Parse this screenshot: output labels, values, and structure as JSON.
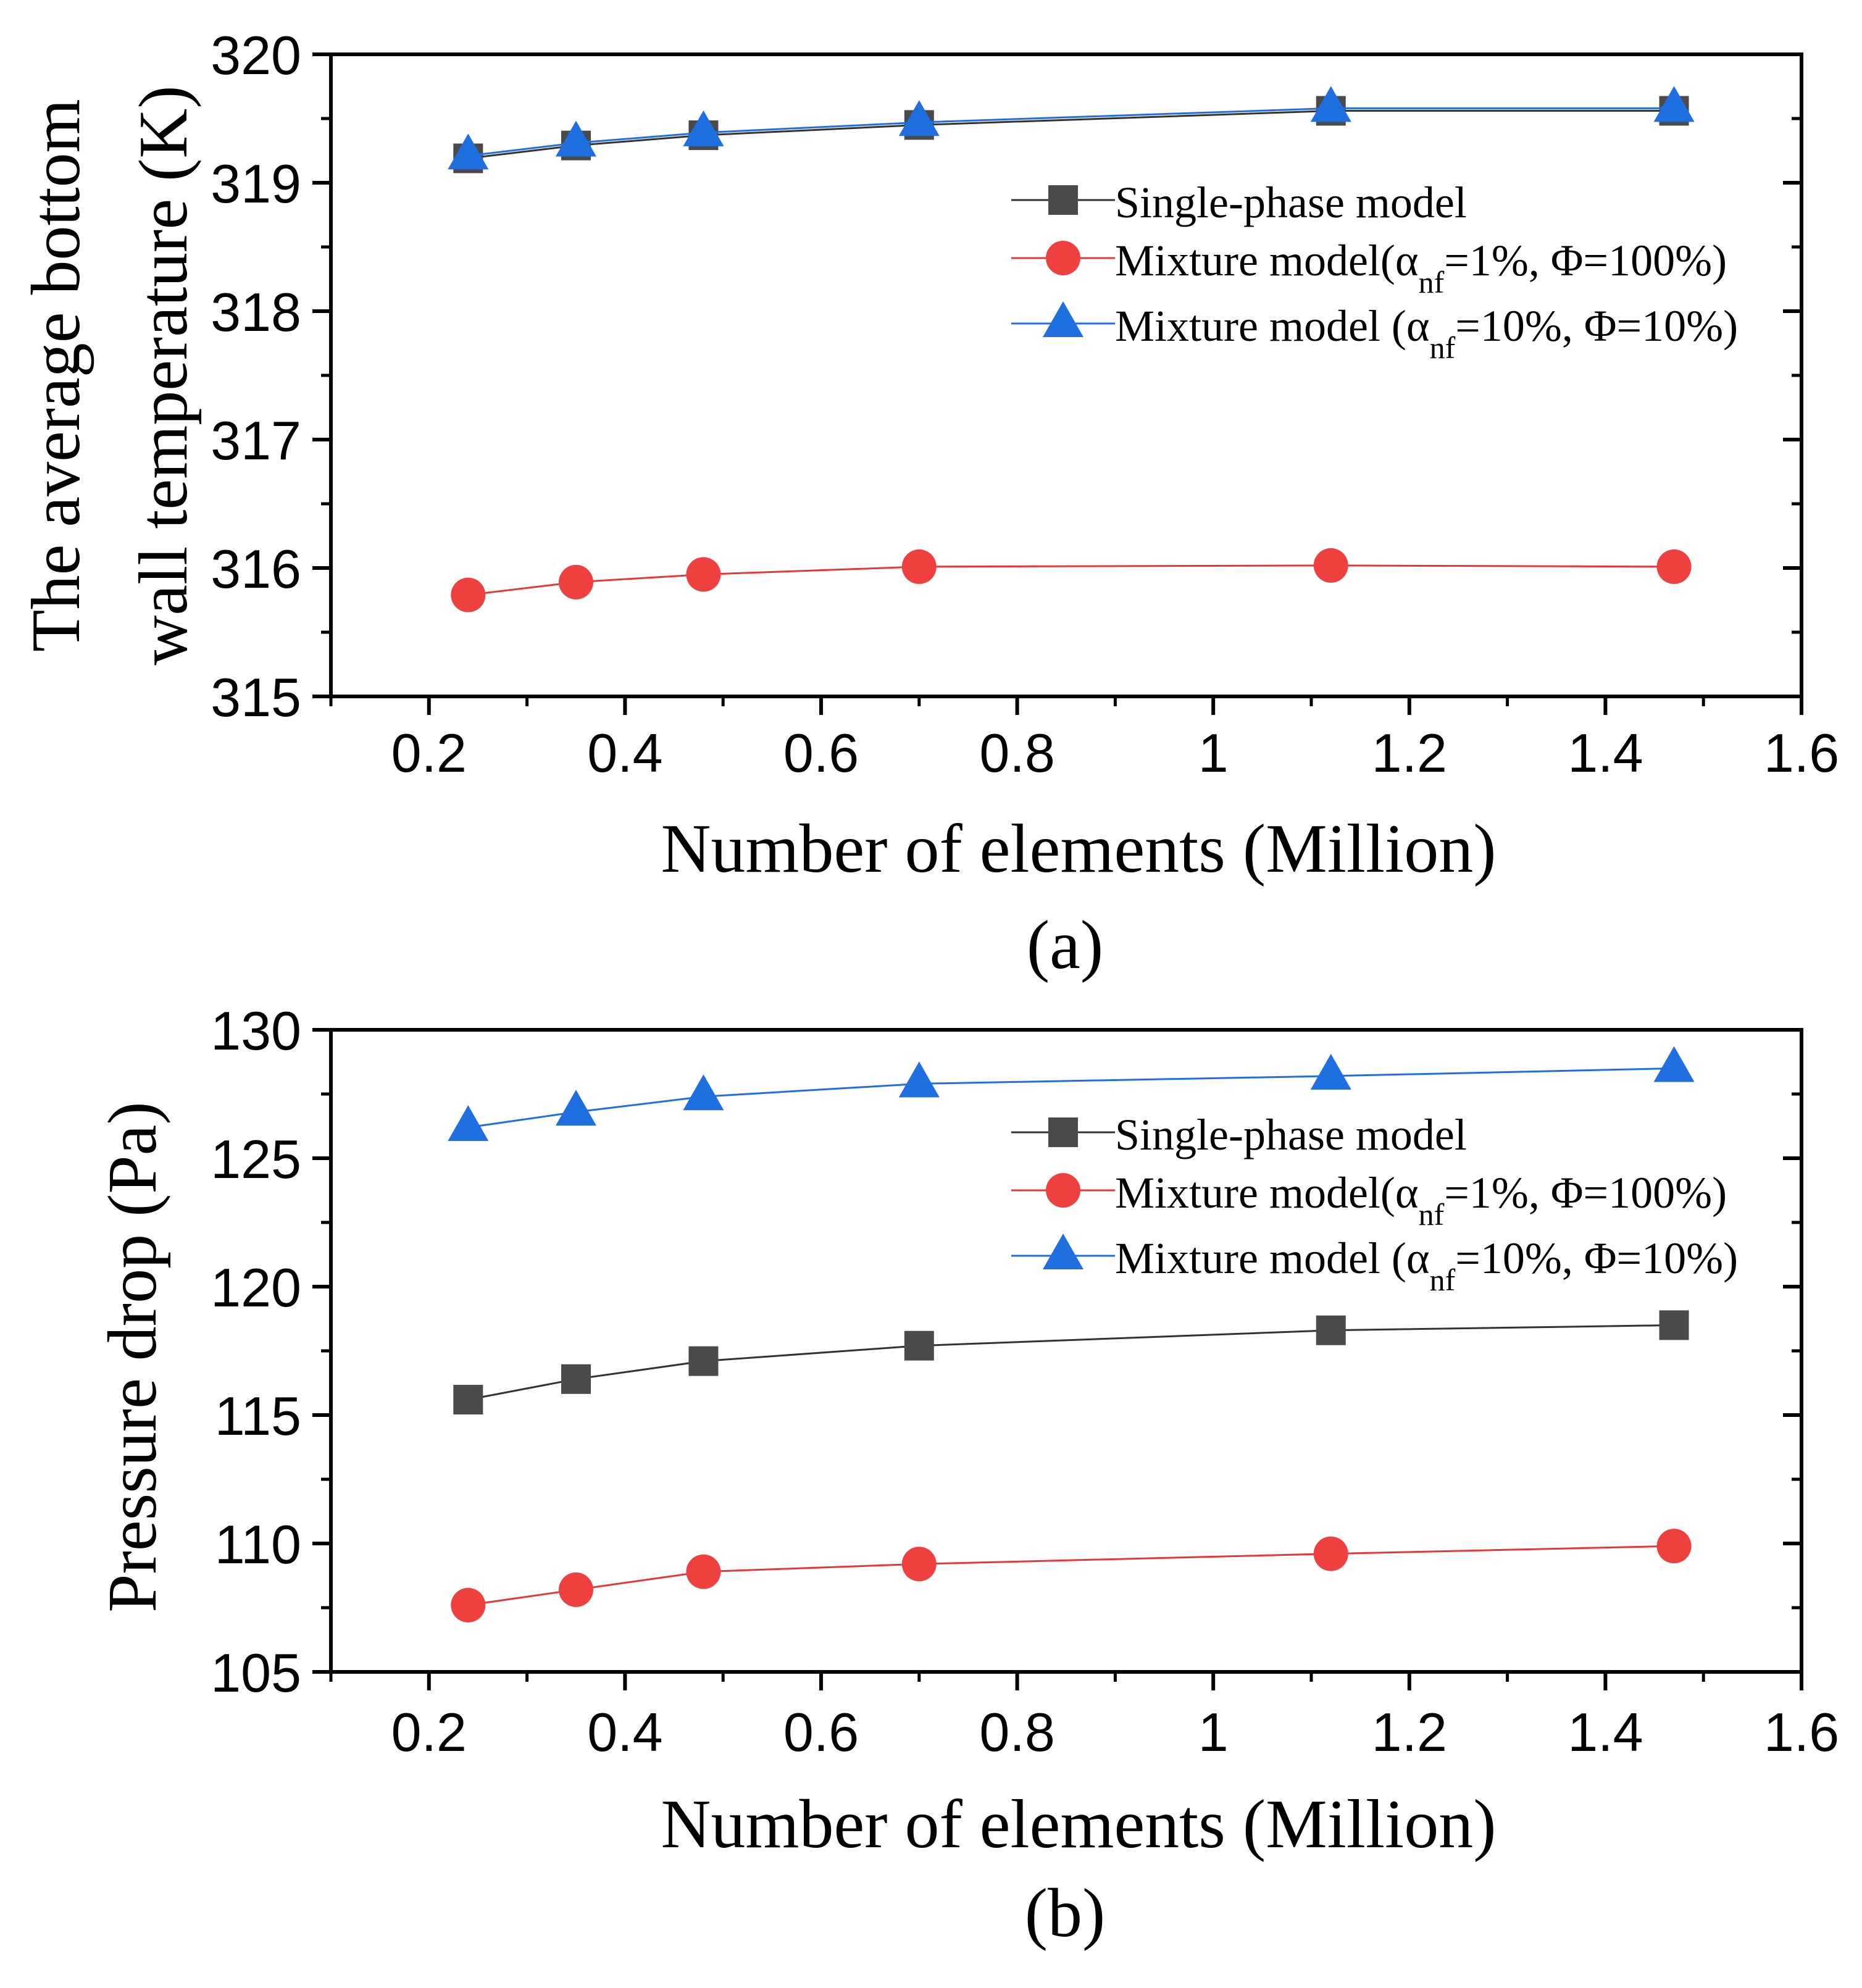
{
  "chart_data": [
    {
      "type": "line",
      "panel_label": "(a)",
      "title": "",
      "xlabel": "Number of elements (Million)",
      "ylabel_lines": [
        "The average bottom",
        "wall temperature (K)"
      ],
      "xlim": [
        0.1,
        1.6
      ],
      "ylim": [
        315,
        320
      ],
      "xticks": [
        0.2,
        0.4,
        0.6,
        0.8,
        1,
        1.2,
        1.4,
        1.6
      ],
      "xtick_labels": [
        "0.2",
        "0.4",
        "0.6",
        "0.8",
        "1",
        "1.2",
        "1.4",
        "1.6"
      ],
      "yticks": [
        315,
        316,
        317,
        318,
        319,
        320
      ],
      "ytick_labels": [
        "315",
        "316",
        "317",
        "318",
        "319",
        "320"
      ],
      "grid": false,
      "legend_position": "top-right",
      "x": [
        0.24,
        0.35,
        0.48,
        0.7,
        1.12,
        1.47
      ],
      "series": [
        {
          "name": "Single-phase model",
          "legend_text": "Single-phase model",
          "marker": "square",
          "color": "#4a4a4a",
          "line_color": "#333333",
          "values": [
            319.19,
            319.29,
            319.37,
            319.45,
            319.56,
            319.56
          ]
        },
        {
          "name": "Mixture model(αnf=1%, Φ=100%)",
          "legend_pre": "Mixture model(α",
          "legend_sub": "nf",
          "legend_post": "=1%, Φ=100%)",
          "marker": "circle",
          "color": "#ef4040",
          "line_color": "#e23a3a",
          "values": [
            315.79,
            315.89,
            315.95,
            316.01,
            316.02,
            316.01
          ]
        },
        {
          "name": "Mixture model (αnf=10%, Φ=10%)",
          "legend_pre": "Mixture model (α",
          "legend_sub": "nf",
          "legend_post": "=10%, Φ=10%)",
          "marker": "triangle",
          "color": "#1f6fe0",
          "line_color": "#1f6fe0",
          "values": [
            319.21,
            319.31,
            319.39,
            319.47,
            319.58,
            319.58
          ]
        }
      ]
    },
    {
      "type": "line",
      "panel_label": "(b)",
      "title": "",
      "xlabel": "Number of elements (Million)",
      "ylabel_lines": [
        "Pressure drop (Pa)"
      ],
      "xlim": [
        0.1,
        1.6
      ],
      "ylim": [
        105,
        130
      ],
      "xticks": [
        0.2,
        0.4,
        0.6,
        0.8,
        1,
        1.2,
        1.4,
        1.6
      ],
      "xtick_labels": [
        "0.2",
        "0.4",
        "0.6",
        "0.8",
        "1",
        "1.2",
        "1.4",
        "1.6"
      ],
      "yticks": [
        105,
        110,
        115,
        120,
        125,
        130
      ],
      "ytick_labels": [
        "105",
        "110",
        "115",
        "120",
        "125",
        "130"
      ],
      "grid": false,
      "legend_position": "top-right",
      "x": [
        0.24,
        0.35,
        0.48,
        0.7,
        1.12,
        1.47
      ],
      "series": [
        {
          "name": "Single-phase model",
          "legend_text": "Single-phase model",
          "marker": "square",
          "color": "#4a4a4a",
          "line_color": "#333333",
          "values": [
            115.6,
            116.4,
            117.1,
            117.7,
            118.3,
            118.5
          ]
        },
        {
          "name": "Mixture model(αnf=1%, Φ=100%)",
          "legend_pre": "Mixture model(α",
          "legend_sub": "nf",
          "legend_post": "=1%, Φ=100%)",
          "marker": "circle",
          "color": "#ef4040",
          "line_color": "#e23a3a",
          "values": [
            107.6,
            108.2,
            108.9,
            109.2,
            109.6,
            109.9
          ]
        },
        {
          "name": "Mixture model (αnf=10%, Φ=10%)",
          "legend_pre": "Mixture model (α",
          "legend_sub": "nf",
          "legend_post": "=10%, Φ=10%)",
          "marker": "triangle",
          "color": "#1f6fe0",
          "line_color": "#1f6fe0",
          "values": [
            126.2,
            126.8,
            127.4,
            127.9,
            128.2,
            128.5
          ]
        }
      ]
    }
  ]
}
